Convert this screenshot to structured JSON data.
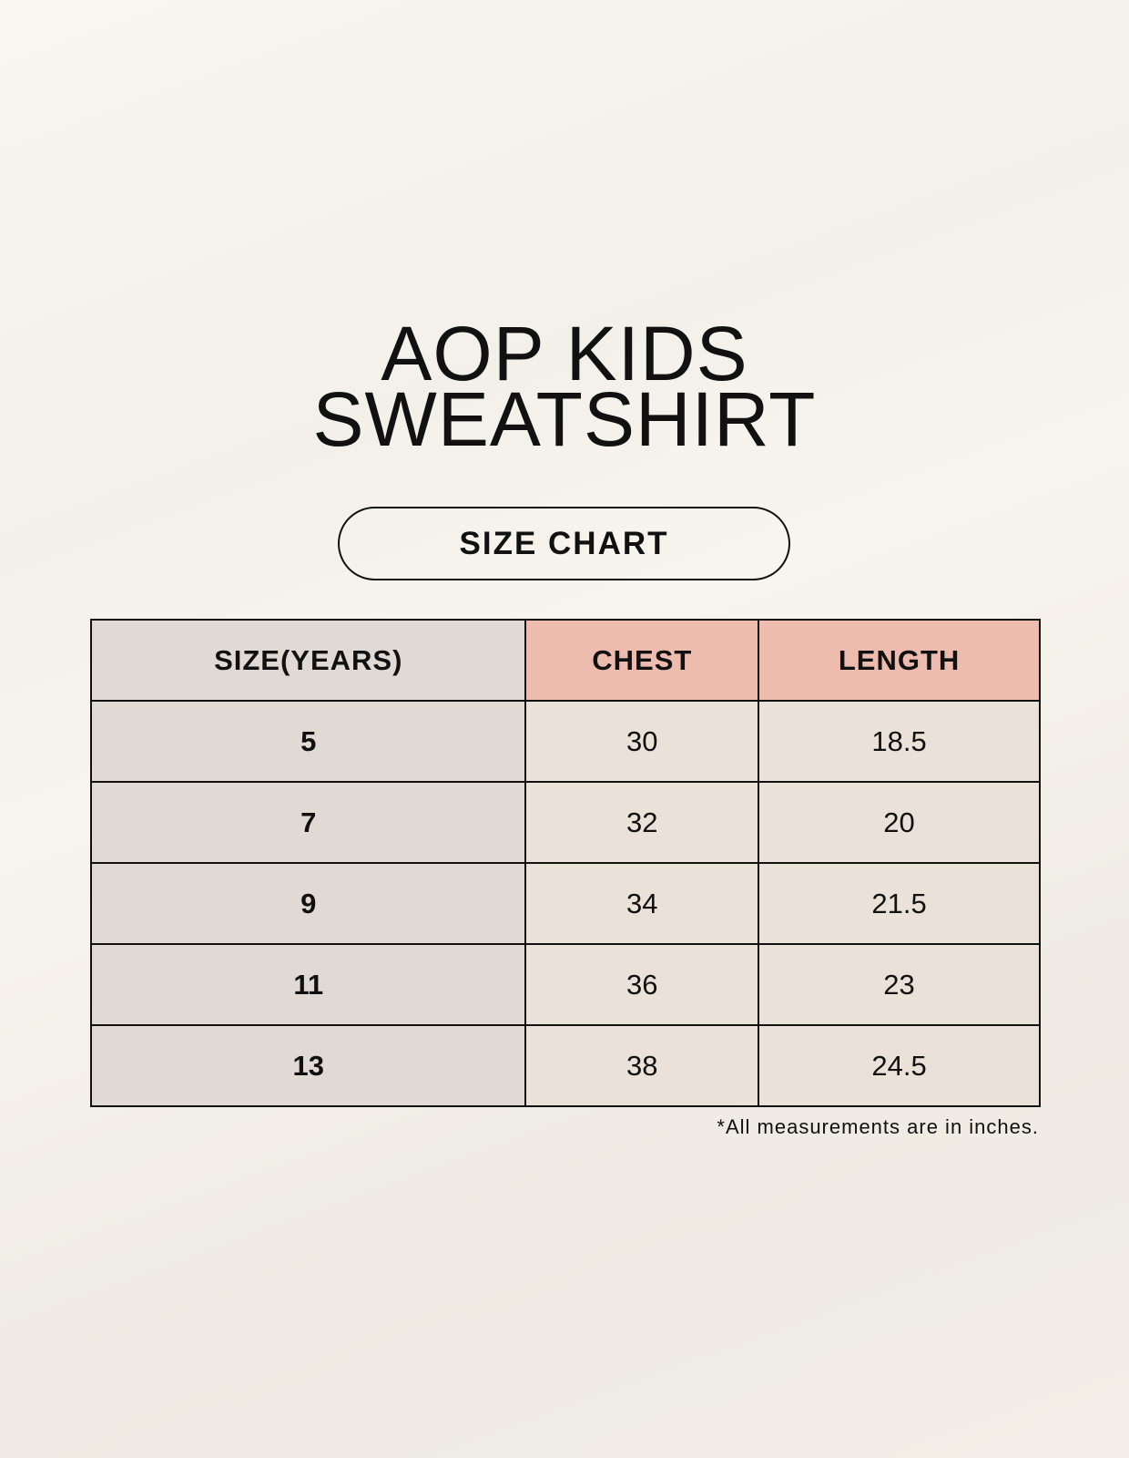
{
  "title": {
    "line1": "AOP KIDS",
    "line2": "SWEATSHIRT"
  },
  "subtitle": "SIZE CHART",
  "table": {
    "headers": [
      "SIZE(YEARS)",
      "CHEST",
      "LENGTH"
    ],
    "rows": [
      [
        "5",
        "30",
        "18.5"
      ],
      [
        "7",
        "32",
        "20"
      ],
      [
        "9",
        "34",
        "21.5"
      ],
      [
        "11",
        "36",
        "23"
      ],
      [
        "13",
        "38",
        "24.5"
      ]
    ]
  },
  "footnote": "*All measurements are in inches.",
  "colors": {
    "header_accent": "#eebcae",
    "size_column": "#e0d9d4",
    "cell": "#eae2d8"
  }
}
